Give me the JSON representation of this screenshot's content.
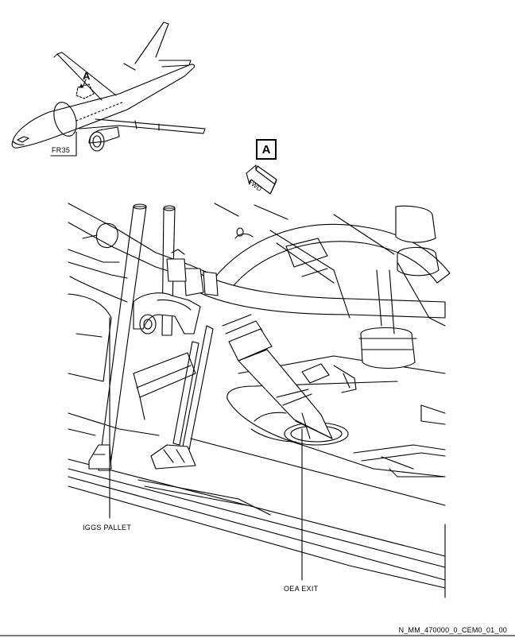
{
  "figure": {
    "locator": {
      "zone_label": "A",
      "frame_label": "FR35"
    },
    "view_label": "A",
    "fwd_label": "FWD",
    "callouts": {
      "iggs_pallet": "IGGS PALLET",
      "oea_exit": "OEA EXIT"
    },
    "document_id": "N_MM_470000_0_CEM0_01_00"
  }
}
